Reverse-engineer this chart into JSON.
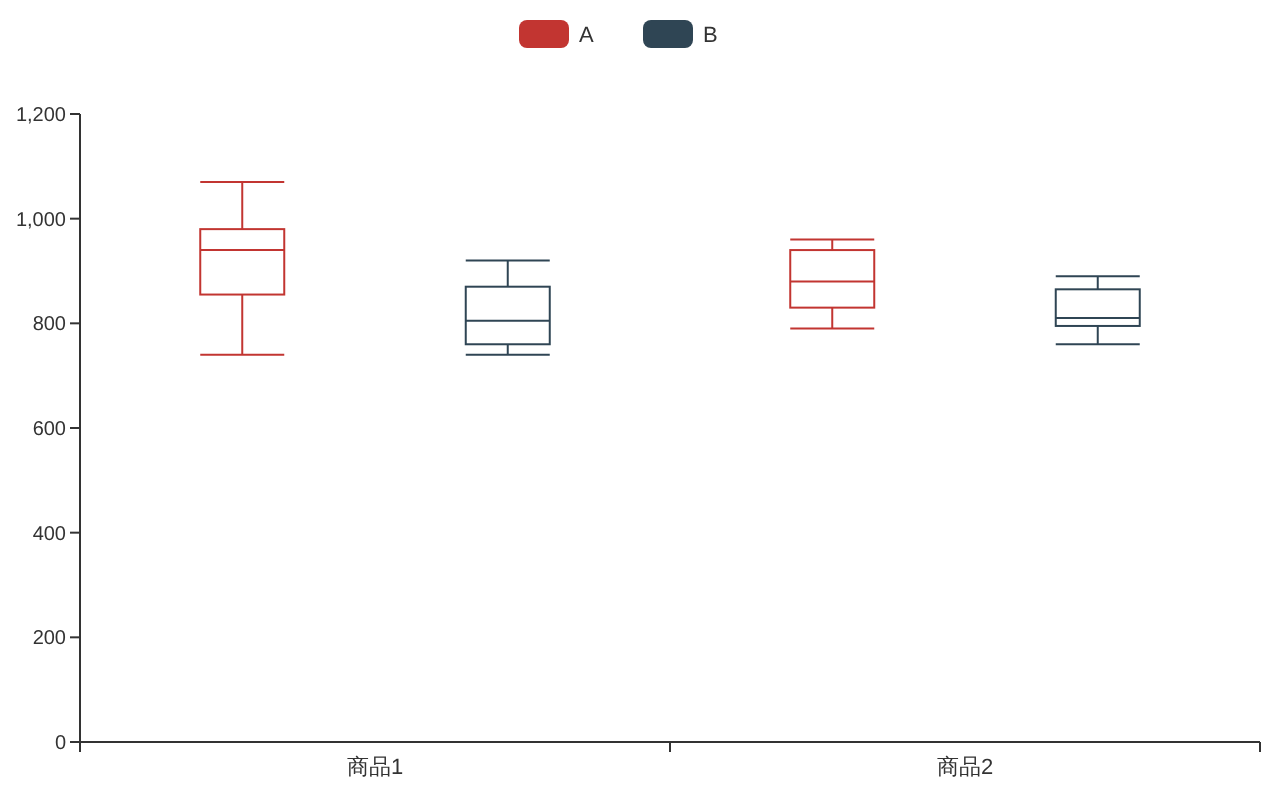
{
  "chart_data": {
    "type": "box",
    "categories": [
      "商品1",
      "商品2"
    ],
    "ylim": [
      0,
      1200
    ],
    "yticks": [
      0,
      200,
      400,
      600,
      800,
      {
        "value": 1000,
        "label": "1,000"
      },
      {
        "value": 1200,
        "label": "1,200"
      }
    ],
    "legend": "top",
    "grid": false,
    "series": [
      {
        "name": "A",
        "color": "#c23531",
        "boxes": [
          {
            "low": 740,
            "q1": 855,
            "median": 940,
            "q3": 980,
            "high": 1070
          },
          {
            "low": 790,
            "q1": 830,
            "median": 880,
            "q3": 940,
            "high": 960
          }
        ]
      },
      {
        "name": "B",
        "color": "#2f4554",
        "boxes": [
          {
            "low": 740,
            "q1": 760,
            "median": 805,
            "q3": 870,
            "high": 920
          },
          {
            "low": 760,
            "q1": 795,
            "median": 810,
            "q3": 865,
            "high": 890
          }
        ]
      }
    ]
  }
}
